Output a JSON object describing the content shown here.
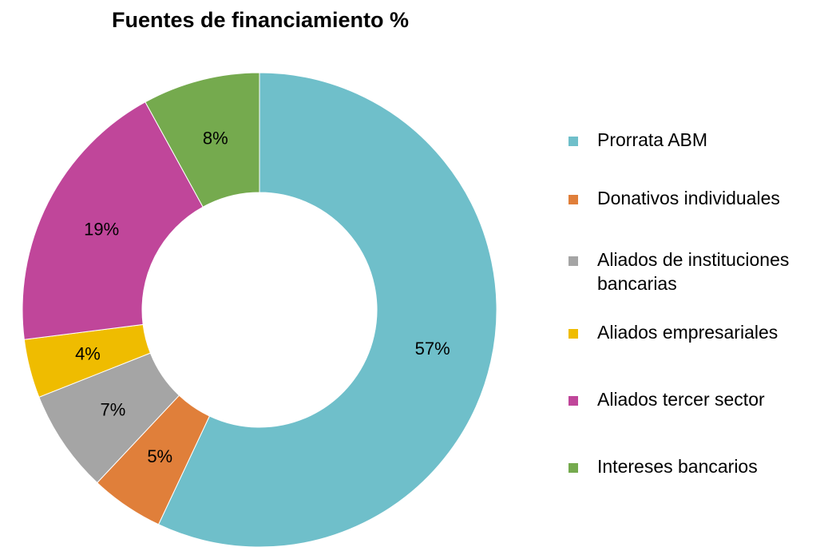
{
  "chart_data": {
    "type": "pie",
    "title": "Fuentes de financiamiento %",
    "donut": true,
    "legend_position": "right",
    "slices": [
      {
        "name": "Prorrata ABM",
        "value": 57,
        "label": "57%",
        "color": "#6fbfca"
      },
      {
        "name": "Donativos individuales",
        "value": 5,
        "label": "5%",
        "color": "#e07f3a"
      },
      {
        "name": "Aliados de instituciones bancarias",
        "value": 7,
        "label": "7%",
        "color": "#a5a5a5"
      },
      {
        "name": "Aliados empresariales",
        "value": 4,
        "label": "4%",
        "color": "#efbc00"
      },
      {
        "name": "Aliados tercer sector",
        "value": 19,
        "label": "19%",
        "color": "#c0469a"
      },
      {
        "name": "Intereses bancarios",
        "value": 8,
        "label": "8%",
        "color": "#75aa4e"
      }
    ]
  },
  "legend": {
    "items": [
      {
        "label": "Prorrata ABM",
        "color": "#6fbfca"
      },
      {
        "label": "Donativos individuales",
        "color": "#e07f3a"
      },
      {
        "label": "Aliados de instituciones bancarias",
        "color": "#a5a5a5"
      },
      {
        "label": "Aliados empresariales",
        "color": "#efbc00"
      },
      {
        "label": "Aliados tercer sector",
        "color": "#c0469a"
      },
      {
        "label": "Intereses bancarios",
        "color": "#75aa4e"
      }
    ]
  }
}
